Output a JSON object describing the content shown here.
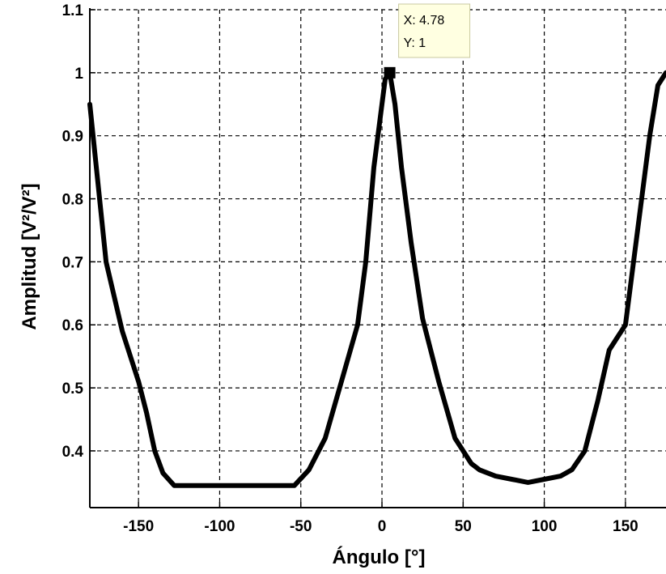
{
  "chart_data": {
    "type": "line",
    "xlabel": "Ángulo [°]",
    "ylabel": "Amplitud [V²/V²]",
    "xlim": [
      -180,
      175
    ],
    "ylim": [
      0.31,
      1.1
    ],
    "grid": true,
    "x_ticks": [
      -150,
      -100,
      -50,
      0,
      50,
      100,
      150
    ],
    "x_tick_labels": [
      "-150",
      "-100",
      "-50",
      "0",
      "50",
      "100",
      "150"
    ],
    "y_ticks": [
      0.4,
      0.5,
      0.6,
      0.7,
      0.8,
      0.9,
      1.0,
      1.1
    ],
    "y_tick_labels": [
      "0.4",
      "0.5",
      "0.6",
      "0.7",
      "0.8",
      "0.9",
      "1",
      "1.1"
    ],
    "series": [
      {
        "color": "#000000",
        "x": [
          -180,
          -170,
          -160,
          -150,
          -145,
          -140,
          -135,
          -128,
          -120,
          -110,
          -100,
          -90,
          -80,
          -70,
          -60,
          -54,
          -45,
          -35,
          -25,
          -15,
          -10,
          -5,
          0,
          2,
          4.78,
          8,
          12,
          18,
          25,
          35,
          45,
          50,
          55,
          60,
          70,
          80,
          90,
          100,
          110,
          117,
          125,
          133,
          140,
          150,
          155,
          160,
          165,
          170,
          175
        ],
        "y": [
          0.95,
          0.7,
          0.59,
          0.51,
          0.46,
          0.4,
          0.365,
          0.345,
          0.345,
          0.345,
          0.345,
          0.345,
          0.345,
          0.345,
          0.345,
          0.345,
          0.37,
          0.42,
          0.51,
          0.6,
          0.7,
          0.85,
          0.95,
          0.99,
          1.0,
          0.95,
          0.85,
          0.73,
          0.61,
          0.51,
          0.42,
          0.4,
          0.38,
          0.37,
          0.36,
          0.355,
          0.35,
          0.355,
          0.36,
          0.37,
          0.4,
          0.48,
          0.56,
          0.6,
          0.7,
          0.8,
          0.9,
          0.98,
          1.0
        ]
      }
    ],
    "datatip": {
      "x": 4.78,
      "y": 1,
      "x_text": "X: 4.78",
      "y_text": "Y: 1"
    }
  }
}
